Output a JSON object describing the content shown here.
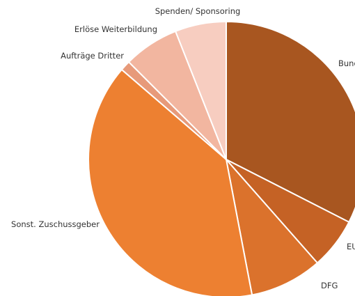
{
  "chart_data": {
    "type": "pie",
    "title": "",
    "start_angle_deg": 0,
    "direction": "clockwise",
    "slices": [
      {
        "label": "Bund",
        "value": 32.5,
        "color": "#a85620"
      },
      {
        "label": "EU",
        "value": 6.0,
        "color": "#c56225"
      },
      {
        "label": "DFG",
        "value": 8.5,
        "color": "#db722c"
      },
      {
        "label": "Sonst. Zuschussgeber",
        "value": 39.3,
        "color": "#ed8031"
      },
      {
        "label": "Aufträge Dritter",
        "value": 1.2,
        "color": "#e79a7a"
      },
      {
        "label": "Erlöse Weiterbildung",
        "value": 6.5,
        "color": "#f2b6a0"
      },
      {
        "label": "Spenden/ Sponsoring",
        "value": 6.0,
        "color": "#f7cdc0"
      }
    ]
  }
}
